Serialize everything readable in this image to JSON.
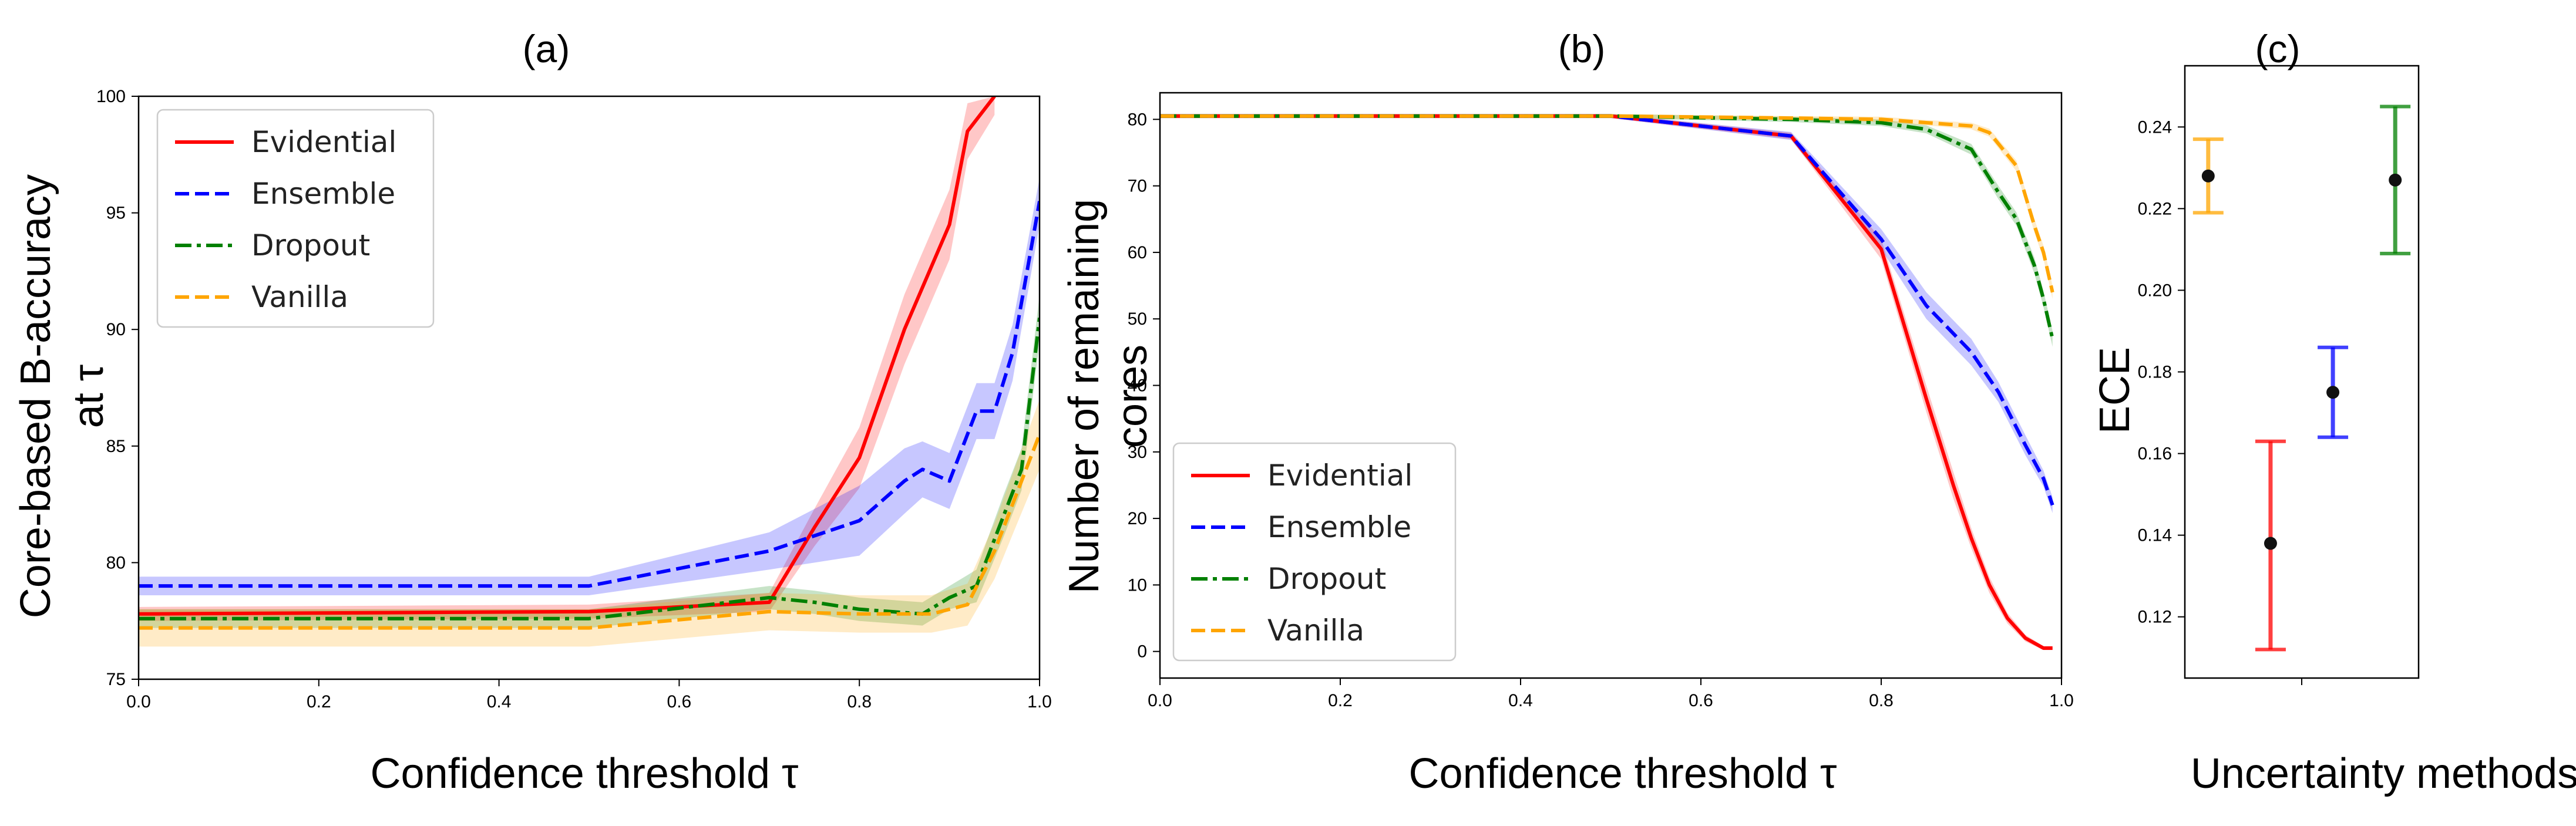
{
  "figure": {
    "panels": [
      {
        "title": "(a)"
      },
      {
        "title": "(b)"
      },
      {
        "title": "(c)"
      }
    ]
  },
  "chart_data": [
    {
      "type": "line",
      "title": "(a)",
      "xlabel": "Confidence threshold τ",
      "ylabel_lines": [
        "Core-based B-accuracy",
        "at τ"
      ],
      "xlim": [
        0.0,
        1.0
      ],
      "ylim": [
        75,
        100
      ],
      "xticks": [
        "0.0",
        "0.2",
        "0.4",
        "0.6",
        "0.8",
        "1.0"
      ],
      "yticks": [
        "75",
        "80",
        "85",
        "90",
        "95",
        "100"
      ],
      "legend": "top-left",
      "grid": false,
      "series": [
        {
          "name": "Evidential",
          "color": "#ff0000",
          "style": "solid",
          "x": [
            0,
            0.5,
            0.7,
            0.75,
            0.8,
            0.85,
            0.9,
            0.92,
            0.95
          ],
          "y": [
            77.8,
            77.9,
            78.3,
            81.5,
            84.5,
            90.0,
            94.5,
            98.5,
            100.0
          ],
          "band": [
            0.3,
            0.3,
            0.4,
            0.8,
            1.3,
            1.5,
            1.5,
            1.2,
            0.8
          ]
        },
        {
          "name": "Ensemble",
          "color": "#0000ff",
          "style": "dashed",
          "x": [
            0,
            0.5,
            0.7,
            0.8,
            0.85,
            0.87,
            0.9,
            0.93,
            0.95,
            0.97,
            1.0
          ],
          "y": [
            79.0,
            79.0,
            80.5,
            81.8,
            83.5,
            84.0,
            83.5,
            86.5,
            86.5,
            89.0,
            95.5
          ],
          "band": [
            0.4,
            0.4,
            0.8,
            1.5,
            1.4,
            1.2,
            1.2,
            1.2,
            1.2,
            1.2,
            1.0
          ]
        },
        {
          "name": "Dropout",
          "color": "#008000",
          "style": "dashdot",
          "x": [
            0,
            0.5,
            0.7,
            0.75,
            0.8,
            0.87,
            0.9,
            0.93,
            0.96,
            0.98,
            1.0
          ],
          "y": [
            77.6,
            77.6,
            78.5,
            78.3,
            78.0,
            77.8,
            78.5,
            79.0,
            82.0,
            84.0,
            90.5
          ],
          "band": [
            0.4,
            0.4,
            0.5,
            0.5,
            0.5,
            0.5,
            0.5,
            0.7,
            0.9,
            0.9,
            1.0
          ]
        },
        {
          "name": "Vanilla",
          "color": "#ffa500",
          "style": "dashed",
          "x": [
            0,
            0.5,
            0.7,
            0.8,
            0.88,
            0.92,
            0.95,
            0.97,
            1.0
          ],
          "y": [
            77.2,
            77.2,
            77.9,
            77.8,
            77.8,
            78.2,
            80.5,
            82.5,
            85.5
          ],
          "band": [
            0.8,
            0.8,
            0.8,
            0.8,
            0.8,
            0.9,
            1.2,
            1.3,
            1.5
          ]
        }
      ]
    },
    {
      "type": "line",
      "title": "(b)",
      "xlabel": "Confidence threshold τ",
      "ylabel_lines": [
        "Number of remaining",
        "cores"
      ],
      "xlim": [
        0.0,
        1.0
      ],
      "ylim": [
        -4,
        84
      ],
      "xticks": [
        "0.0",
        "0.2",
        "0.4",
        "0.6",
        "0.8",
        "1.0"
      ],
      "yticks": [
        "0",
        "10",
        "20",
        "30",
        "40",
        "50",
        "60",
        "70",
        "80"
      ],
      "legend": "bottom-left",
      "grid": false,
      "series": [
        {
          "name": "Evidential",
          "color": "#ff0000",
          "style": "solid",
          "x": [
            0,
            0.5,
            0.7,
            0.8,
            0.85,
            0.88,
            0.9,
            0.92,
            0.94,
            0.96,
            0.98,
            0.99
          ],
          "y": [
            80.5,
            80.5,
            77.5,
            60.5,
            38,
            25,
            17,
            10,
            5,
            2,
            0.5,
            0.5
          ],
          "band": [
            0.3,
            0.3,
            0.5,
            1.5,
            2.0,
            2.0,
            1.5,
            1.2,
            0.8,
            0.5,
            0.3,
            0.3
          ]
        },
        {
          "name": "Ensemble",
          "color": "#0000ff",
          "style": "dashed",
          "x": [
            0,
            0.5,
            0.7,
            0.8,
            0.85,
            0.9,
            0.93,
            0.96,
            0.98,
            0.99
          ],
          "y": [
            80.5,
            80.5,
            77.5,
            62,
            52,
            45,
            39,
            31,
            26,
            22
          ],
          "band": [
            0.3,
            0.3,
            0.6,
            1.5,
            2.0,
            2.0,
            1.5,
            1.5,
            1.2,
            1.2
          ]
        },
        {
          "name": "Dropout",
          "color": "#008000",
          "style": "dashdot",
          "x": [
            0,
            0.5,
            0.7,
            0.8,
            0.85,
            0.9,
            0.93,
            0.95,
            0.97,
            0.98,
            0.99
          ],
          "y": [
            80.5,
            80.5,
            80.0,
            79.5,
            78.5,
            75.5,
            69,
            65,
            58,
            53,
            47
          ],
          "band": [
            0.3,
            0.3,
            0.4,
            0.5,
            0.6,
            0.8,
            1.0,
            1.0,
            1.2,
            1.2,
            1.2
          ]
        },
        {
          "name": "Vanilla",
          "color": "#ffa500",
          "style": "dashed",
          "x": [
            0,
            0.5,
            0.7,
            0.8,
            0.85,
            0.9,
            0.92,
            0.95,
            0.97,
            0.98,
            0.99
          ],
          "y": [
            80.5,
            80.5,
            80.2,
            80.0,
            79.5,
            79.0,
            78.0,
            73,
            64,
            60,
            54
          ],
          "band": [
            0.3,
            0.3,
            0.3,
            0.4,
            0.4,
            0.5,
            0.6,
            0.8,
            1.0,
            1.0,
            1.0
          ]
        }
      ]
    },
    {
      "type": "scatter",
      "title": "(c)",
      "xlabel": "Uncertainty methods",
      "ylabel": "ECE",
      "ylim": [
        0.105,
        0.255
      ],
      "yticks": [
        "0.12",
        "0.14",
        "0.16",
        "0.18",
        "0.20",
        "0.22",
        "0.24"
      ],
      "grid": false,
      "points": [
        {
          "pos": 0.3,
          "y": 0.228,
          "low": 0.219,
          "high": 0.237,
          "color": "#ffa500"
        },
        {
          "pos": 1.1,
          "y": 0.138,
          "low": 0.112,
          "high": 0.163,
          "color": "#ff0000"
        },
        {
          "pos": 1.9,
          "y": 0.175,
          "low": 0.164,
          "high": 0.186,
          "color": "#0000ff"
        },
        {
          "pos": 2.7,
          "y": 0.227,
          "low": 0.209,
          "high": 0.245,
          "color": "#008000"
        }
      ]
    }
  ]
}
